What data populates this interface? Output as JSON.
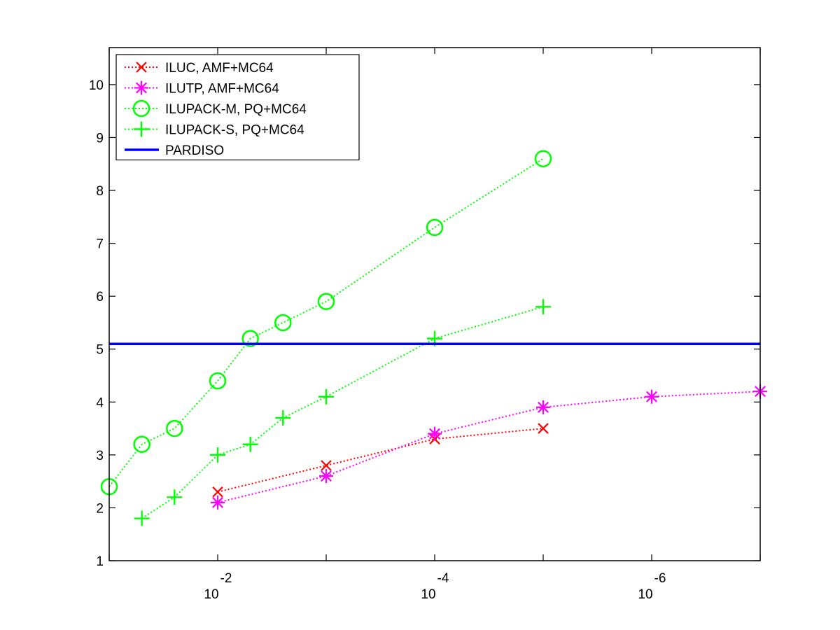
{
  "chart_data": {
    "type": "line",
    "title": "",
    "xlabel": "",
    "ylabel": "",
    "xscale": "log",
    "xreversed": true,
    "xlim": [
      0.1,
      1e-07
    ],
    "ylim": [
      1,
      10.7
    ],
    "x_ticks": [
      {
        "base": "10",
        "exponent": "-2",
        "value": 0.01
      },
      {
        "base": "10",
        "exponent": "-4",
        "value": 0.0001
      },
      {
        "base": "10",
        "exponent": "-6",
        "value": 1e-06
      }
    ],
    "y_ticks": [
      "1",
      "2",
      "3",
      "4",
      "5",
      "6",
      "7",
      "8",
      "9",
      "10"
    ],
    "grid": false,
    "legend_position": "top-left",
    "series": [
      {
        "name": "ILUC, AMF+MC64",
        "color": "#ff0000",
        "marker": "x",
        "linestyle": "dotted",
        "x": [
          0.01,
          0.001,
          0.0001,
          1e-05
        ],
        "y": [
          2.3,
          2.8,
          3.3,
          3.5
        ]
      },
      {
        "name": "ILUTP, AMF+MC64",
        "color": "#ff00ff",
        "marker": "asterisk",
        "linestyle": "dotted",
        "x": [
          0.01,
          0.001,
          0.0001,
          1e-05,
          1e-06,
          1e-07
        ],
        "y": [
          2.1,
          2.6,
          3.4,
          3.9,
          4.1,
          4.2
        ]
      },
      {
        "name": "ILUPACK-M, PQ+MC64",
        "color": "#00ff00",
        "marker": "circle",
        "linestyle": "dotted",
        "x": [
          0.1,
          0.05,
          0.025,
          0.01,
          0.005,
          0.0025,
          0.001,
          0.0001,
          1e-05
        ],
        "y": [
          2.4,
          3.2,
          3.5,
          4.4,
          5.2,
          5.5,
          5.9,
          7.3,
          8.6
        ]
      },
      {
        "name": "ILUPACK-S, PQ+MC64",
        "color": "#00ff00",
        "marker": "plus",
        "linestyle": "dotted",
        "x": [
          0.05,
          0.025,
          0.01,
          0.005,
          0.0025,
          0.001,
          0.0001,
          1e-05
        ],
        "y": [
          1.8,
          2.2,
          3.0,
          3.2,
          3.7,
          4.1,
          5.2,
          5.8
        ]
      },
      {
        "name": "PARDISO",
        "color": "#0000ff",
        "marker": "none",
        "linestyle": "solid",
        "x": [
          0.1,
          1e-07
        ],
        "y": [
          5.1,
          5.1
        ]
      }
    ]
  }
}
